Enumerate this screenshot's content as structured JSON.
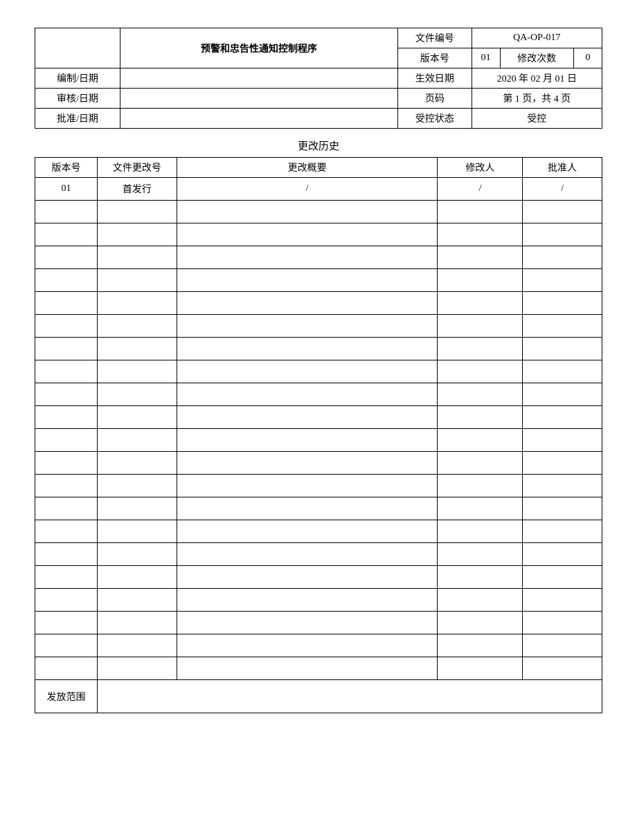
{
  "header": {
    "title": "预警和忠告性通知控制程序",
    "labels": {
      "doc_no": "文件编号",
      "version": "版本号",
      "rev_count": "修改次数",
      "prepared": "编制/日期",
      "reviewed": "审核/日期",
      "approved": "批准/日期",
      "effective": "生效日期",
      "page": "页码",
      "controlled": "受控状态"
    },
    "values": {
      "doc_no": "QA-OP-017",
      "version": "01",
      "rev_count": "0",
      "prepared": "",
      "reviewed": "",
      "approved": "",
      "effective": "2020 年 02 月 01 日",
      "page": "第 1 页，共 4 页",
      "controlled": "受控"
    }
  },
  "history": {
    "title": "更改历史",
    "columns": [
      "版本号",
      "文件更改号",
      "更改概要",
      "修改人",
      "批准人"
    ],
    "rows": [
      [
        "01",
        "首发行",
        "/",
        "/",
        "/"
      ],
      [
        "",
        "",
        "",
        "",
        ""
      ],
      [
        "",
        "",
        "",
        "",
        ""
      ],
      [
        "",
        "",
        "",
        "",
        ""
      ],
      [
        "",
        "",
        "",
        "",
        ""
      ],
      [
        "",
        "",
        "",
        "",
        ""
      ],
      [
        "",
        "",
        "",
        "",
        ""
      ],
      [
        "",
        "",
        "",
        "",
        ""
      ],
      [
        "",
        "",
        "",
        "",
        ""
      ],
      [
        "",
        "",
        "",
        "",
        ""
      ],
      [
        "",
        "",
        "",
        "",
        ""
      ],
      [
        "",
        "",
        "",
        "",
        ""
      ],
      [
        "",
        "",
        "",
        "",
        ""
      ],
      [
        "",
        "",
        "",
        "",
        ""
      ],
      [
        "",
        "",
        "",
        "",
        ""
      ],
      [
        "",
        "",
        "",
        "",
        ""
      ],
      [
        "",
        "",
        "",
        "",
        ""
      ],
      [
        "",
        "",
        "",
        "",
        ""
      ],
      [
        "",
        "",
        "",
        "",
        ""
      ],
      [
        "",
        "",
        "",
        "",
        ""
      ],
      [
        "",
        "",
        "",
        "",
        ""
      ],
      [
        "",
        "",
        "",
        "",
        ""
      ]
    ],
    "scope_label": "发放范围",
    "scope_value": ""
  },
  "layout": {
    "header_col_widths": [
      "15%",
      "49%",
      "13%",
      "5%",
      "13%",
      "5%"
    ],
    "history_col_widths": [
      "11%",
      "14%",
      "46%",
      "15%",
      "14%"
    ]
  }
}
